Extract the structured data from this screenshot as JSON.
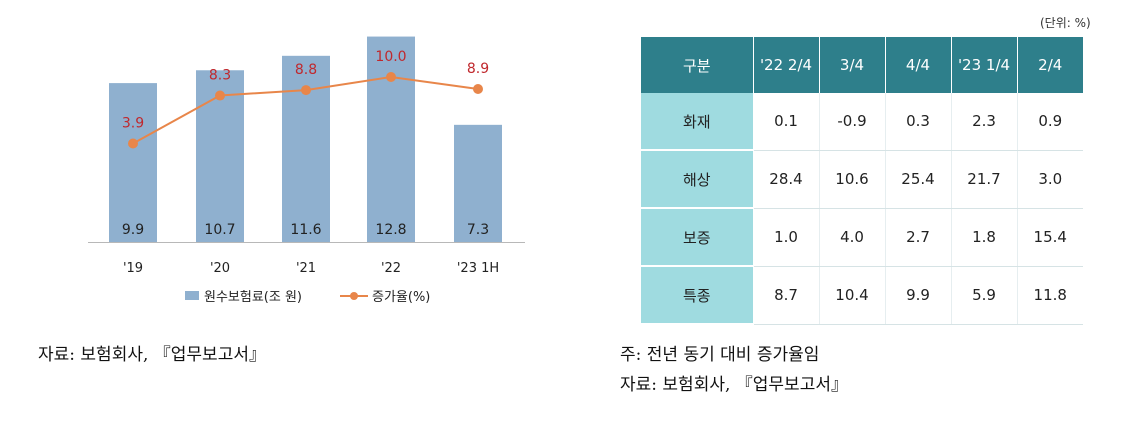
{
  "chart_data": {
    "type": "bar+line",
    "categories": [
      "'19",
      "'20",
      "'21",
      "'22",
      "'23 1H"
    ],
    "series": [
      {
        "name": "원수보험료(조 원)",
        "type": "bar",
        "color": "#8fb0cf",
        "values": [
          9.9,
          10.7,
          11.6,
          12.8,
          7.3
        ]
      },
      {
        "name": "증가율(%)",
        "type": "line",
        "color": "#e8864a",
        "label_color": "#c0282d",
        "values": [
          3.9,
          8.3,
          8.8,
          10.0,
          8.9
        ]
      }
    ],
    "bar_labels": [
      "9.9",
      "10.7",
      "11.6",
      "12.8",
      "7.3"
    ],
    "line_labels": [
      "3.9",
      "8.3",
      "8.8",
      "10.0",
      "8.9"
    ],
    "legend": [
      "원수보험료(조 원)",
      "증가율(%)"
    ],
    "legend_placement": "bottom",
    "grid": false
  },
  "table": {
    "unit": "(단위: %)",
    "header": [
      "구분",
      "'22 2/4",
      "3/4",
      "4/4",
      "'23 1/4",
      "2/4"
    ],
    "rows": [
      {
        "label": "화재",
        "values": [
          "0.1",
          "-0.9",
          "0.3",
          "2.3",
          "0.9"
        ]
      },
      {
        "label": "해상",
        "values": [
          "28.4",
          "10.6",
          "25.4",
          "21.7",
          "3.0"
        ]
      },
      {
        "label": "보증",
        "values": [
          "1.0",
          "4.0",
          "2.7",
          "1.8",
          "15.4"
        ]
      },
      {
        "label": "특종",
        "values": [
          "8.7",
          "10.4",
          "9.9",
          "5.9",
          "11.8"
        ]
      }
    ],
    "header_color": "#2e7f8b",
    "rowhead_color": "#9fdbe0"
  },
  "notes": {
    "left_source": "자료: 보험회사, 『업무보고서』",
    "right_note": "주: 전년 동기 대비 증가율임",
    "right_source": "자료: 보험회사, 『업무보고서』"
  }
}
